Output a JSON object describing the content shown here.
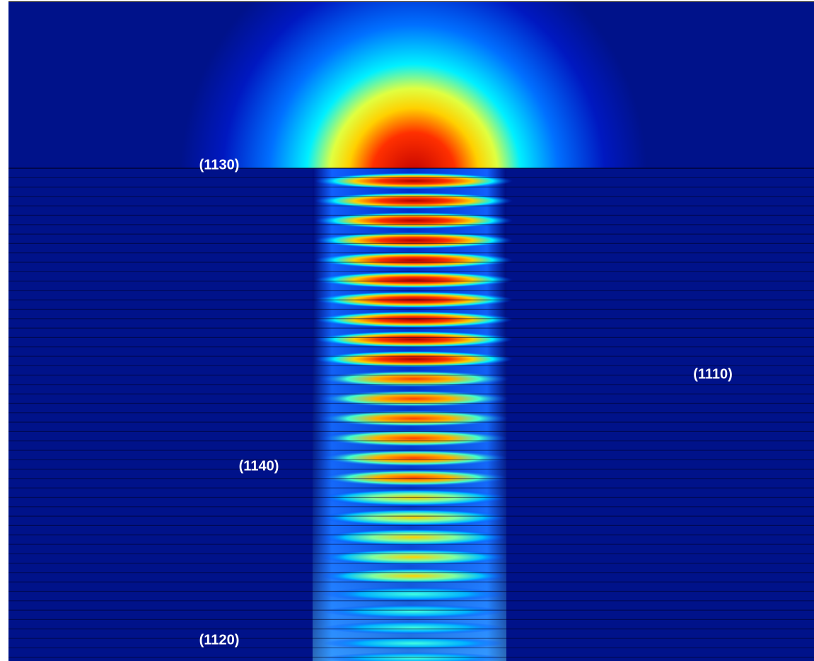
{
  "labels": [
    "(1130)",
    "(1110)",
    "(1140)",
    "(1120)"
  ]
}
